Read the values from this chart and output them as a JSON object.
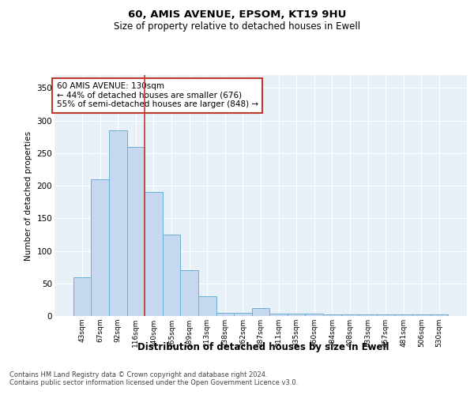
{
  "title1": "60, AMIS AVENUE, EPSOM, KT19 9HU",
  "title2": "Size of property relative to detached houses in Ewell",
  "xlabel": "Distribution of detached houses by size in Ewell",
  "ylabel": "Number of detached properties",
  "categories": [
    "43sqm",
    "67sqm",
    "92sqm",
    "116sqm",
    "140sqm",
    "165sqm",
    "189sqm",
    "213sqm",
    "238sqm",
    "262sqm",
    "287sqm",
    "311sqm",
    "335sqm",
    "360sqm",
    "384sqm",
    "408sqm",
    "433sqm",
    "457sqm",
    "481sqm",
    "506sqm",
    "530sqm"
  ],
  "values": [
    60,
    210,
    285,
    260,
    190,
    125,
    70,
    30,
    5,
    5,
    12,
    4,
    4,
    4,
    3,
    2,
    2,
    2,
    2,
    2,
    2
  ],
  "bar_color": "#c5d8f0",
  "bar_edge_color": "#6baed6",
  "vline_color": "#c0392b",
  "annotation_text": "60 AMIS AVENUE: 130sqm\n← 44% of detached houses are smaller (676)\n55% of semi-detached houses are larger (848) →",
  "annotation_box_color": "white",
  "annotation_box_edge": "#c0392b",
  "ylim": [
    0,
    370
  ],
  "yticks": [
    0,
    50,
    100,
    150,
    200,
    250,
    300,
    350
  ],
  "footer_text": "Contains HM Land Registry data © Crown copyright and database right 2024.\nContains public sector information licensed under the Open Government Licence v3.0.",
  "plot_bg_color": "#e8f0f8"
}
